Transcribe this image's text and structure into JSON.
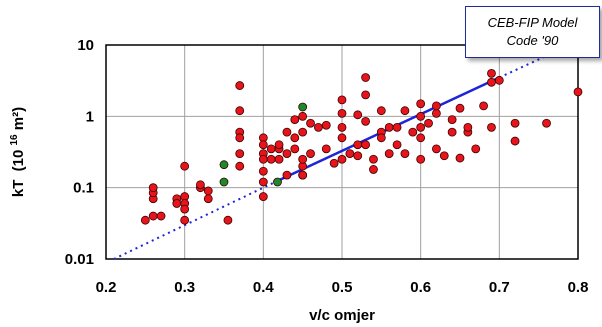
{
  "chart_data": {
    "type": "scatter",
    "xlabel": "v/c omjer",
    "ylabel_main": "kT",
    "ylabel_unit_open": "(10",
    "ylabel_exp": "16",
    "ylabel_unit_close": " m²)",
    "xlim": [
      0.2,
      0.8
    ],
    "ylim": [
      0.01,
      10
    ],
    "yscale": "log",
    "grid": true,
    "x_ticks": [
      0.2,
      0.3,
      0.4,
      0.5,
      0.6,
      0.7,
      0.8
    ],
    "x_tick_labels": [
      "0.2",
      "0.3",
      "0.4",
      "0.5",
      "0.6",
      "0.7",
      "0.8"
    ],
    "y_ticks": [
      0.01,
      0.1,
      1,
      10
    ],
    "y_tick_labels": [
      "0.01",
      "0.1",
      "1",
      "10"
    ],
    "annotation_line1": "CEB-FIP Model",
    "annotation_line2": "Code '90",
    "colors": {
      "red_points": "#e8141b",
      "green_points": "#1a8a2a",
      "model_line": "#1d25d6",
      "grid": "#a0a0a0"
    },
    "series": [
      {
        "marker": "red-dot",
        "points": [
          [
            0.25,
            0.035
          ],
          [
            0.26,
            0.07
          ],
          [
            0.26,
            0.085
          ],
          [
            0.26,
            0.1
          ],
          [
            0.26,
            0.04
          ],
          [
            0.27,
            0.04
          ],
          [
            0.29,
            0.07
          ],
          [
            0.29,
            0.06
          ],
          [
            0.3,
            0.075
          ],
          [
            0.3,
            0.06
          ],
          [
            0.3,
            0.05
          ],
          [
            0.3,
            0.035
          ],
          [
            0.3,
            0.2
          ],
          [
            0.32,
            0.1
          ],
          [
            0.32,
            0.11
          ],
          [
            0.33,
            0.09
          ],
          [
            0.33,
            0.07
          ],
          [
            0.355,
            0.035
          ],
          [
            0.37,
            2.7
          ],
          [
            0.37,
            1.2
          ],
          [
            0.37,
            0.6
          ],
          [
            0.37,
            0.5
          ],
          [
            0.37,
            0.3
          ],
          [
            0.37,
            0.2
          ],
          [
            0.4,
            0.5
          ],
          [
            0.4,
            0.4
          ],
          [
            0.4,
            0.3
          ],
          [
            0.4,
            0.25
          ],
          [
            0.4,
            0.17
          ],
          [
            0.4,
            0.12
          ],
          [
            0.4,
            0.075
          ],
          [
            0.41,
            0.35
          ],
          [
            0.41,
            0.25
          ],
          [
            0.42,
            0.25
          ],
          [
            0.42,
            0.35
          ],
          [
            0.42,
            0.4
          ],
          [
            0.43,
            0.6
          ],
          [
            0.43,
            0.15
          ],
          [
            0.43,
            0.3
          ],
          [
            0.44,
            0.9
          ],
          [
            0.44,
            0.5
          ],
          [
            0.44,
            0.35
          ],
          [
            0.45,
            0.2
          ],
          [
            0.45,
            0.25
          ],
          [
            0.45,
            0.15
          ],
          [
            0.45,
            0.6
          ],
          [
            0.45,
            1.0
          ],
          [
            0.45,
            0.15
          ],
          [
            0.46,
            0.8
          ],
          [
            0.46,
            0.3
          ],
          [
            0.47,
            0.7
          ],
          [
            0.48,
            0.35
          ],
          [
            0.48,
            0.75
          ],
          [
            0.49,
            0.22
          ],
          [
            0.5,
            0.5
          ],
          [
            0.5,
            0.7
          ],
          [
            0.5,
            1.1
          ],
          [
            0.5,
            1.7
          ],
          [
            0.5,
            0.25
          ],
          [
            0.51,
            0.3
          ],
          [
            0.52,
            0.28
          ],
          [
            0.52,
            0.4
          ],
          [
            0.53,
            0.4
          ],
          [
            0.53,
            3.5
          ],
          [
            0.53,
            2.0
          ],
          [
            0.53,
            0.85
          ],
          [
            0.54,
            0.18
          ],
          [
            0.54,
            0.25
          ],
          [
            0.55,
            0.6
          ],
          [
            0.55,
            1.2
          ],
          [
            0.55,
            0.5
          ],
          [
            0.56,
            0.7
          ],
          [
            0.56,
            0.3
          ],
          [
            0.57,
            0.7
          ],
          [
            0.57,
            0.4
          ],
          [
            0.58,
            1.2
          ],
          [
            0.58,
            0.3
          ],
          [
            0.59,
            0.6
          ],
          [
            0.6,
            1.0
          ],
          [
            0.6,
            0.7
          ],
          [
            0.6,
            1.5
          ],
          [
            0.6,
            0.5
          ],
          [
            0.6,
            0.25
          ],
          [
            0.61,
            0.8
          ],
          [
            0.62,
            1.1
          ],
          [
            0.62,
            0.35
          ],
          [
            0.62,
            1.4
          ],
          [
            0.63,
            0.28
          ],
          [
            0.64,
            0.9
          ],
          [
            0.64,
            0.6
          ],
          [
            0.65,
            0.26
          ],
          [
            0.65,
            1.3
          ],
          [
            0.66,
            0.6
          ],
          [
            0.66,
            0.7
          ],
          [
            0.67,
            0.35
          ],
          [
            0.68,
            1.4
          ],
          [
            0.69,
            4.0
          ],
          [
            0.69,
            3.0
          ],
          [
            0.69,
            0.7
          ],
          [
            0.7,
            3.2
          ],
          [
            0.72,
            0.45
          ],
          [
            0.72,
            0.8
          ],
          [
            0.76,
            0.8
          ],
          [
            0.8,
            2.2
          ],
          [
            0.52,
            1.05
          ]
        ]
      },
      {
        "marker": "green-dot",
        "points": [
          [
            0.35,
            0.21
          ],
          [
            0.35,
            0.12
          ],
          [
            0.418,
            0.12
          ],
          [
            0.45,
            1.35
          ]
        ]
      }
    ],
    "model_line": {
      "solid": [
        [
          0.415,
          0.12
        ],
        [
          0.7,
          3.5
        ]
      ],
      "dotted": [
        [
          0.21,
          0.01
        ],
        [
          0.415,
          0.12
        ],
        [
          0.7,
          3.5
        ],
        [
          0.79,
          10
        ]
      ]
    }
  }
}
